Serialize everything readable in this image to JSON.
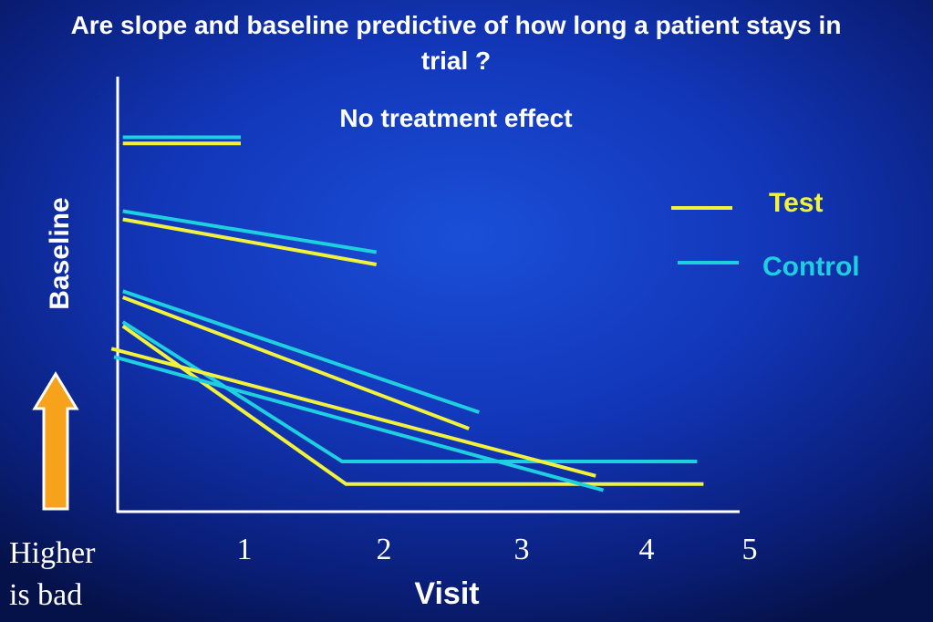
{
  "colors": {
    "test": "#f2f23c",
    "control": "#1ecfe0",
    "arrow": "#f7a21b",
    "axis": "#ffffff"
  },
  "annotation": {
    "line1": "Higher",
    "line2": "is bad",
    "arrow_icon": "up-arrow-icon"
  },
  "chart_data": {
    "type": "line",
    "title": "Are slope and baseline  predictive of how long a patient stays in  trial ?",
    "subtitle": "No treatment effect",
    "xlabel": "Visit",
    "ylabel": "Baseline",
    "x_ticks": [
      "1",
      "2",
      "3",
      "4",
      "5"
    ],
    "grid": false,
    "legend_position": "right",
    "series": [
      {
        "name": "Test",
        "color": "#f2f23c"
      },
      {
        "name": "Control",
        "color": "#1ecfe0"
      }
    ],
    "lines": [
      {
        "group": "Test",
        "points": [
          [
            0.07,
            8.95
          ],
          [
            1.0,
            8.95
          ]
        ]
      },
      {
        "group": "Control",
        "points": [
          [
            0.07,
            9.1
          ],
          [
            1.0,
            9.1
          ]
        ]
      },
      {
        "group": "Test",
        "points": [
          [
            0.07,
            7.1
          ],
          [
            2.07,
            6.0
          ]
        ]
      },
      {
        "group": "Control",
        "points": [
          [
            0.07,
            7.3
          ],
          [
            2.07,
            6.3
          ]
        ]
      },
      {
        "group": "Test",
        "points": [
          [
            0.07,
            5.2
          ],
          [
            2.8,
            2.0
          ]
        ]
      },
      {
        "group": "Control",
        "points": [
          [
            0.07,
            5.35
          ],
          [
            2.88,
            2.4
          ]
        ]
      },
      {
        "group": "Test",
        "points": [
          [
            0.07,
            4.5
          ],
          [
            1.83,
            0.65
          ],
          [
            4.65,
            0.65
          ]
        ]
      },
      {
        "group": "Control",
        "points": [
          [
            0.07,
            4.6
          ],
          [
            1.8,
            1.2
          ],
          [
            4.6,
            1.2
          ]
        ]
      },
      {
        "group": "Test",
        "points": [
          [
            -0.02,
            3.95
          ],
          [
            3.8,
            0.85
          ]
        ]
      },
      {
        "group": "Control",
        "points": [
          [
            0.0,
            3.75
          ],
          [
            3.86,
            0.5
          ]
        ]
      }
    ]
  }
}
